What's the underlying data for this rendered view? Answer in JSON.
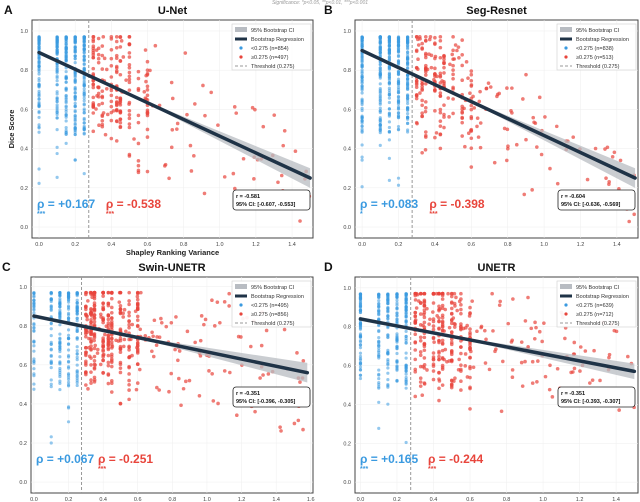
{
  "significance_note": "Significance: *p<0.05, **p<0.01, ***p<0.001",
  "colors": {
    "low": "#3a9ae0",
    "high": "#e8453c",
    "regression": "#1f3347",
    "ci": "#b8bcc2",
    "threshold": "#999999"
  },
  "chart_data": [
    {
      "type": "scatter",
      "panel": "A",
      "title": "U-Net",
      "xlabel": "Shapley Ranking Variance",
      "ylabel": "Dice Score",
      "xlim": [
        -0.039,
        1.516
      ],
      "ylim": [
        -0.056,
        1.056
      ],
      "xticks": [
        "0.0",
        "0.2",
        "0.4",
        "0.6",
        "0.8",
        "1.0",
        "1.2",
        "1.4"
      ],
      "xtick_values": [
        0,
        0.2,
        0.4,
        0.6,
        0.8,
        1.0,
        1.2,
        1.4
      ],
      "yticks": [
        "0.0",
        "0.2",
        "0.4",
        "0.6",
        "0.8",
        "1.0"
      ],
      "ytick_values": [
        0,
        0.2,
        0.4,
        0.6,
        0.8,
        1.0
      ],
      "threshold": 0.275,
      "regression": {
        "x": [
          0,
          1.5
        ],
        "y": [
          0.89,
          0.25
        ],
        "ci_halfwidth_end": 0.05
      },
      "legend": [
        "95% Bootstrap CI",
        "Bootstrap Regression",
        "<0.275 (n=854)",
        "≥0.275 (n=497)",
        "Threshold (0.275)"
      ],
      "legend_position": "top-right",
      "stats": {
        "r": "r = -0.581",
        "ci": "95% CI: [-0.607, -0.553]"
      },
      "rho_low": "ρ = +0.167",
      "stars_low": "***",
      "rho_high": "ρ = -0.538",
      "stars_high": "***",
      "n_low": 854,
      "n_high": 497
    },
    {
      "type": "scatter",
      "panel": "B",
      "title": "Seg-Resnet",
      "xlabel": "",
      "ylabel": "",
      "xlim": [
        -0.039,
        1.516
      ],
      "ylim": [
        -0.056,
        1.056
      ],
      "xticks": [
        "0.0",
        "0.2",
        "0.4",
        "0.6",
        "0.8",
        "1.0",
        "1.2",
        "1.4"
      ],
      "xtick_values": [
        0,
        0.2,
        0.4,
        0.6,
        0.8,
        1.0,
        1.2,
        1.4
      ],
      "yticks": [
        "0.0",
        "0.2",
        "0.4",
        "0.6",
        "0.8",
        "1.0"
      ],
      "ytick_values": [
        0,
        0.2,
        0.4,
        0.6,
        0.8,
        1.0
      ],
      "threshold": 0.275,
      "regression": {
        "x": [
          0,
          1.5
        ],
        "y": [
          0.9,
          0.25
        ],
        "ci_halfwidth_end": 0.05
      },
      "legend": [
        "95% Bootstrap CI",
        "Bootstrap Regression",
        "<0.275 (n=838)",
        "≥0.275 (n=513)",
        "Threshold (0.275)"
      ],
      "legend_position": "top-right",
      "stats": {
        "r": "r = -0.604",
        "ci": "95% CI: [-0.636, -0.569]"
      },
      "rho_low": "ρ = +0.083",
      "stars_low": "*",
      "rho_high": "ρ = -0.398",
      "stars_high": "***",
      "n_low": 838,
      "n_high": 513
    },
    {
      "type": "scatter",
      "panel": "C",
      "title": "Swin-UNETR",
      "xlabel": "",
      "ylabel": "",
      "xlim": [
        -0.017,
        1.613
      ],
      "ylim": [
        -0.056,
        1.05
      ],
      "xticks": [
        "0.0",
        "0.2",
        "0.4",
        "0.6",
        "0.8",
        "1.0",
        "1.2",
        "1.4",
        "1.6"
      ],
      "xtick_values": [
        0,
        0.2,
        0.4,
        0.6,
        0.8,
        1.0,
        1.2,
        1.4,
        1.6
      ],
      "yticks": [
        "0.0",
        "0.2",
        "0.4",
        "0.6",
        "0.8",
        "1.0"
      ],
      "ytick_values": [
        0,
        0.2,
        0.4,
        0.6,
        0.8,
        1.0
      ],
      "threshold": 0.275,
      "regression": {
        "x": [
          0,
          1.58
        ],
        "y": [
          0.85,
          0.56
        ],
        "ci_halfwidth_end": 0.05
      },
      "legend": [
        "95% Bootstrap CI",
        "Bootstrap Regression",
        "<0.275 (n=495)",
        "≥0.275 (n=856)",
        "Threshold (0.275)"
      ],
      "legend_position": "top-right",
      "stats": {
        "r": "r = -0.351",
        "ci": "95% CI: [-0.396, -0.305]"
      },
      "rho_low": "ρ = +0.067",
      "stars_low": "",
      "rho_high": "ρ = -0.251",
      "stars_high": "***",
      "n_low": 495,
      "n_high": 856
    },
    {
      "type": "scatter",
      "panel": "D",
      "title": "UNETR",
      "xlabel": "",
      "ylabel": "",
      "xlim": [
        -0.03,
        1.52
      ],
      "ylim": [
        -0.056,
        1.056
      ],
      "xticks": [
        "0.0",
        "0.2",
        "0.4",
        "0.6",
        "0.8",
        "1.0",
        "1.2",
        "1.4"
      ],
      "xtick_values": [
        0,
        0.2,
        0.4,
        0.6,
        0.8,
        1.0,
        1.2,
        1.4
      ],
      "yticks": [
        "0.0",
        "0.2",
        "0.4",
        "0.6",
        "0.8",
        "1.0"
      ],
      "ytick_values": [
        0,
        0.2,
        0.4,
        0.6,
        0.8,
        1.0
      ],
      "threshold": 0.275,
      "regression": {
        "x": [
          0,
          1.5
        ],
        "y": [
          0.84,
          0.57
        ],
        "ci_halfwidth_end": 0.04
      },
      "legend": [
        "95% Bootstrap CI",
        "Bootstrap Regression",
        "<0.275 (n=639)",
        "≥0.275 (n=712)",
        "Threshold (0.275)"
      ],
      "legend_position": "top-right",
      "stats": {
        "r": "r = -0.351",
        "ci": "95% CI: [-0.393, -0.307]"
      },
      "rho_low": "ρ = +0.165",
      "stars_low": "***",
      "rho_high": "ρ = -0.244",
      "stars_high": "***",
      "n_low": 639,
      "n_high": 712
    }
  ]
}
